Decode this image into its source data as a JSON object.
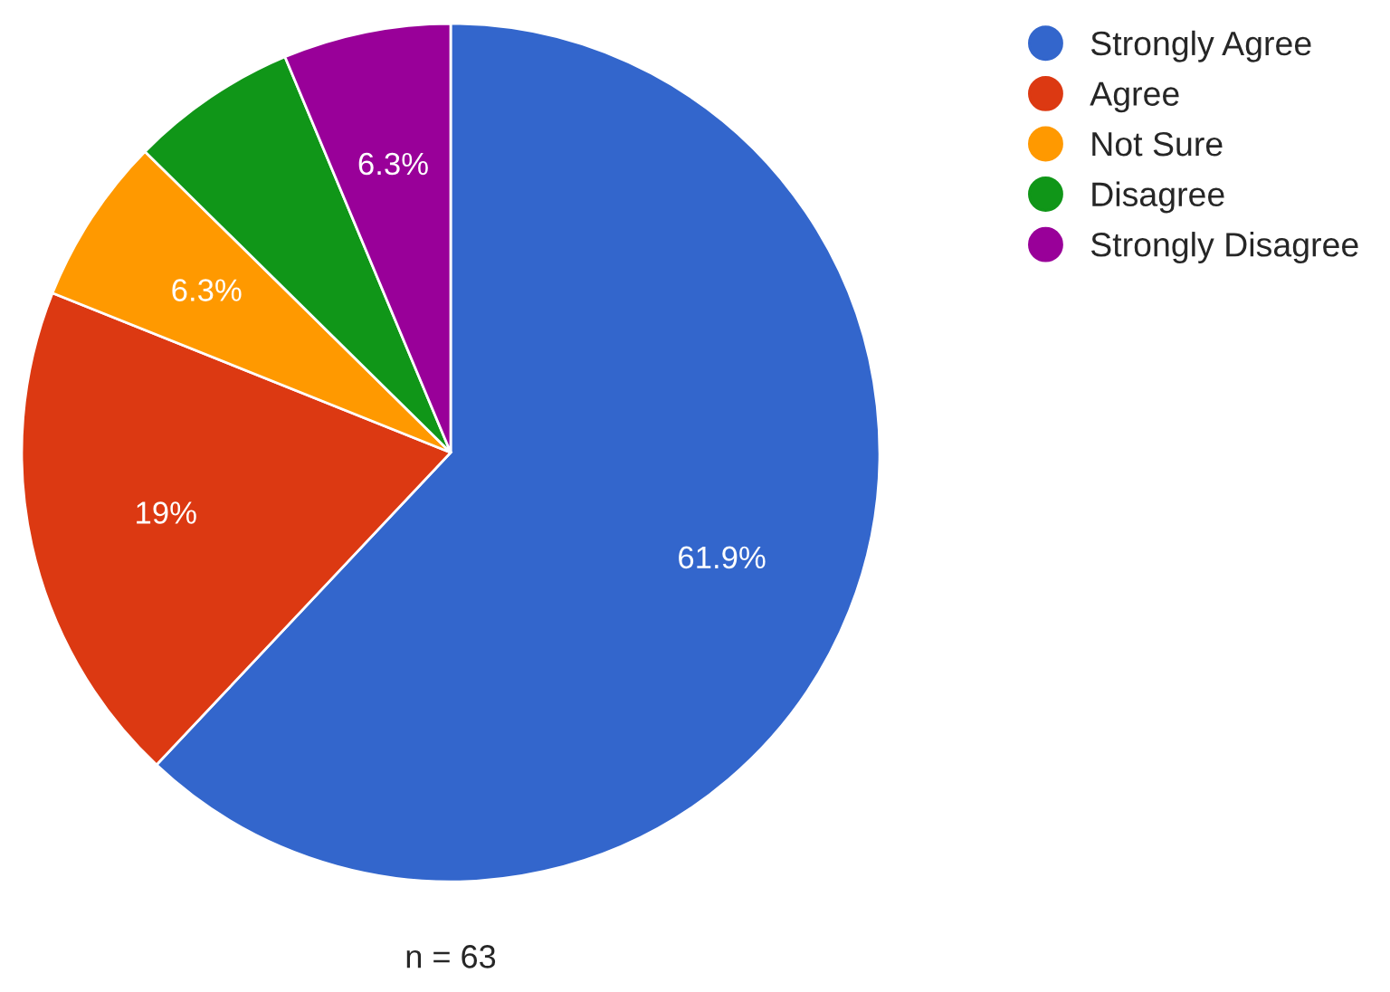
{
  "chart_data": {
    "type": "pie",
    "categories": [
      "Strongly Agree",
      "Agree",
      "Not Sure",
      "Disagree",
      "Strongly Disagree"
    ],
    "values": [
      61.9,
      19,
      6.3,
      6.3,
      6.3
    ],
    "colors": [
      "#3366cc",
      "#dc3912",
      "#ff9900",
      "#109618",
      "#990099"
    ],
    "value_labels": [
      "61.9%",
      "19%",
      "6.3%",
      null,
      "6.3%"
    ],
    "legend": "top right",
    "annotations": [
      "n = 63"
    ]
  }
}
